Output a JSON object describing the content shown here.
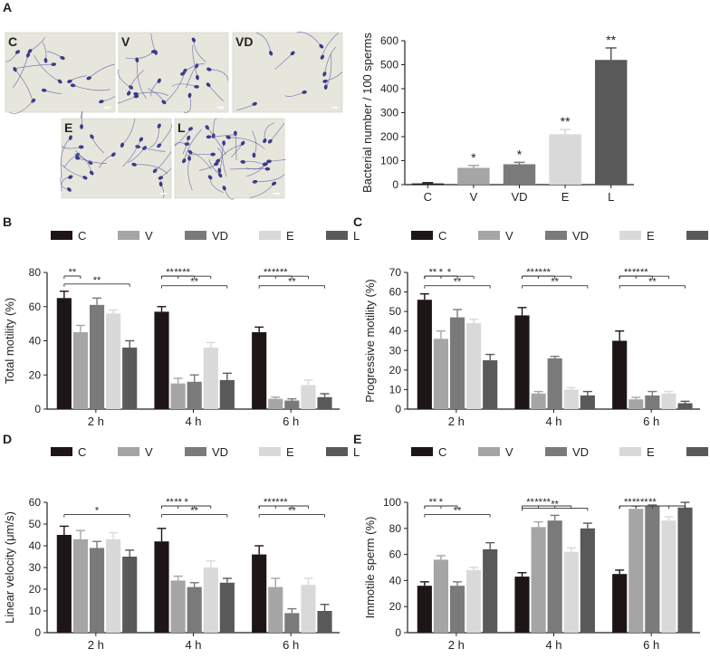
{
  "figure": {
    "panel_A_label": "A",
    "photos": [
      "C",
      "V",
      "VD",
      "E",
      "L"
    ]
  },
  "colors": {
    "C": "#1e1616",
    "V": "#a5a5a5",
    "VD": "#7a7a7a",
    "E": "#d9d9d9",
    "L": "#595959"
  },
  "chart_data": [
    {
      "panel": "A",
      "type": "bar",
      "categories": [
        "C",
        "V",
        "VD",
        "E",
        "L"
      ],
      "values": [
        5,
        70,
        85,
        210,
        520
      ],
      "errors": [
        3,
        10,
        8,
        20,
        50
      ],
      "significance": [
        "",
        "*",
        "*",
        "**",
        "**"
      ],
      "ylabel": "Bacterial number / 100 sperms",
      "ylim": [
        0,
        600
      ],
      "yticks": [
        0,
        100,
        200,
        300,
        400,
        500,
        600
      ]
    },
    {
      "panel": "B",
      "type": "bar",
      "categories": [
        "2 h",
        "4 h",
        "6 h"
      ],
      "legend": [
        "C",
        "V",
        "VD",
        "E",
        "L"
      ],
      "series": [
        {
          "name": "C",
          "values": [
            65,
            57,
            45
          ],
          "errors": [
            4,
            3,
            3
          ]
        },
        {
          "name": "V",
          "values": [
            45,
            15,
            6
          ],
          "errors": [
            4,
            3,
            1
          ]
        },
        {
          "name": "VD",
          "values": [
            61,
            16,
            5
          ],
          "errors": [
            4,
            4,
            1
          ]
        },
        {
          "name": "E",
          "values": [
            56,
            36,
            14
          ],
          "errors": [
            2,
            3,
            3
          ]
        },
        {
          "name": "L",
          "values": [
            36,
            17,
            7
          ],
          "errors": [
            4,
            4,
            2
          ]
        }
      ],
      "ylabel": "Total motility (%)",
      "ylim": [
        0,
        80
      ],
      "yticks": [
        0,
        20,
        40,
        60,
        80
      ],
      "brackets": [
        {
          "group": 0,
          "to": 1,
          "label": "**"
        },
        {
          "group": 0,
          "to": 4,
          "label": "**"
        },
        {
          "group": 1,
          "to": 1,
          "label": "**"
        },
        {
          "group": 1,
          "to": 2,
          "label": "**"
        },
        {
          "group": 1,
          "to": 3,
          "label": "**"
        },
        {
          "group": 1,
          "to": 4,
          "label": "**"
        },
        {
          "group": 2,
          "to": 1,
          "label": "**"
        },
        {
          "group": 2,
          "to": 2,
          "label": "**"
        },
        {
          "group": 2,
          "to": 3,
          "label": "**"
        },
        {
          "group": 2,
          "to": 4,
          "label": "**"
        }
      ]
    },
    {
      "panel": "C",
      "type": "bar",
      "categories": [
        "2 h",
        "4 h",
        "6 h"
      ],
      "legend": [
        "C",
        "V",
        "VD",
        "E",
        "L"
      ],
      "series": [
        {
          "name": "C",
          "values": [
            56,
            48,
            35
          ],
          "errors": [
            3,
            4,
            5
          ]
        },
        {
          "name": "V",
          "values": [
            36,
            8,
            5
          ],
          "errors": [
            4,
            1,
            1
          ]
        },
        {
          "name": "VD",
          "values": [
            47,
            26,
            7
          ],
          "errors": [
            4,
            1,
            2
          ]
        },
        {
          "name": "E",
          "values": [
            44,
            10,
            8
          ],
          "errors": [
            2,
            1,
            1
          ]
        },
        {
          "name": "L",
          "values": [
            25,
            7,
            3
          ],
          "errors": [
            3,
            2,
            1
          ]
        }
      ],
      "ylabel": "Progressive motility (%)",
      "ylim": [
        0,
        70
      ],
      "yticks": [
        0,
        10,
        20,
        30,
        40,
        50,
        60,
        70
      ],
      "brackets": [
        {
          "group": 0,
          "to": 1,
          "label": "**"
        },
        {
          "group": 0,
          "to": 2,
          "label": "*"
        },
        {
          "group": 0,
          "to": 3,
          "label": "*"
        },
        {
          "group": 0,
          "to": 4,
          "label": "**"
        },
        {
          "group": 1,
          "to": 1,
          "label": "**"
        },
        {
          "group": 1,
          "to": 2,
          "label": "**"
        },
        {
          "group": 1,
          "to": 3,
          "label": "**"
        },
        {
          "group": 1,
          "to": 4,
          "label": "**"
        },
        {
          "group": 2,
          "to": 1,
          "label": "**"
        },
        {
          "group": 2,
          "to": 2,
          "label": "**"
        },
        {
          "group": 2,
          "to": 3,
          "label": "**"
        },
        {
          "group": 2,
          "to": 4,
          "label": "**"
        }
      ]
    },
    {
      "panel": "D",
      "type": "bar",
      "categories": [
        "2 h",
        "4 h",
        "6 h"
      ],
      "legend": [
        "C",
        "V",
        "VD",
        "E",
        "L"
      ],
      "series": [
        {
          "name": "C",
          "values": [
            45,
            42,
            36
          ],
          "errors": [
            4,
            6,
            4
          ]
        },
        {
          "name": "V",
          "values": [
            43,
            24,
            21
          ],
          "errors": [
            4,
            2,
            4
          ]
        },
        {
          "name": "VD",
          "values": [
            39,
            21,
            9
          ],
          "errors": [
            3,
            2,
            2
          ]
        },
        {
          "name": "E",
          "values": [
            43,
            30,
            22
          ],
          "errors": [
            3,
            3,
            3
          ]
        },
        {
          "name": "L",
          "values": [
            35,
            23,
            10
          ],
          "errors": [
            3,
            2,
            3
          ]
        }
      ],
      "ylabel": "Linear velocity (μm/s)",
      "ylim": [
        0,
        60
      ],
      "yticks": [
        0,
        10,
        20,
        30,
        40,
        50,
        60
      ],
      "brackets": [
        {
          "group": 0,
          "to": 4,
          "label": "*"
        },
        {
          "group": 1,
          "to": 1,
          "label": "**"
        },
        {
          "group": 1,
          "to": 2,
          "label": "**"
        },
        {
          "group": 1,
          "to": 3,
          "label": "*"
        },
        {
          "group": 1,
          "to": 4,
          "label": "**"
        },
        {
          "group": 2,
          "to": 1,
          "label": "**"
        },
        {
          "group": 2,
          "to": 2,
          "label": "**"
        },
        {
          "group": 2,
          "to": 3,
          "label": "**"
        },
        {
          "group": 2,
          "to": 4,
          "label": "**"
        }
      ]
    },
    {
      "panel": "E",
      "type": "bar",
      "categories": [
        "2 h",
        "4 h",
        "6 h"
      ],
      "legend": [
        "C",
        "V",
        "VD",
        "E",
        "L"
      ],
      "series": [
        {
          "name": "C",
          "values": [
            36,
            43,
            45
          ],
          "errors": [
            3,
            3,
            3
          ]
        },
        {
          "name": "V",
          "values": [
            56,
            81,
            95
          ],
          "errors": [
            3,
            4,
            2
          ]
        },
        {
          "name": "VD",
          "values": [
            36,
            86,
            97
          ],
          "errors": [
            3,
            4,
            1
          ]
        },
        {
          "name": "E",
          "values": [
            48,
            62,
            86
          ],
          "errors": [
            2,
            3,
            3
          ]
        },
        {
          "name": "L",
          "values": [
            64,
            80,
            96
          ],
          "errors": [
            5,
            4,
            4
          ]
        }
      ],
      "ylabel": "Immotile sperm (%)",
      "ylim": [
        0,
        100
      ],
      "yticks": [
        0,
        20,
        40,
        60,
        80,
        100
      ],
      "brackets": [
        {
          "group": 0,
          "to": 1,
          "label": "**"
        },
        {
          "group": 0,
          "to": 2,
          "label": "*"
        },
        {
          "group": 0,
          "to": 4,
          "label": "**"
        },
        {
          "group": 1,
          "to": 1,
          "label": "**"
        },
        {
          "group": 1,
          "to": 2,
          "label": "**"
        },
        {
          "group": 1,
          "to": 3,
          "label": "**"
        },
        {
          "group": 1,
          "to": 4,
          "label": "**"
        },
        {
          "group": 2,
          "to": 1,
          "label": "**"
        },
        {
          "group": 2,
          "to": 2,
          "label": "**"
        },
        {
          "group": 2,
          "to": 3,
          "label": "**"
        },
        {
          "group": 2,
          "to": 4,
          "label": "**"
        }
      ]
    }
  ]
}
